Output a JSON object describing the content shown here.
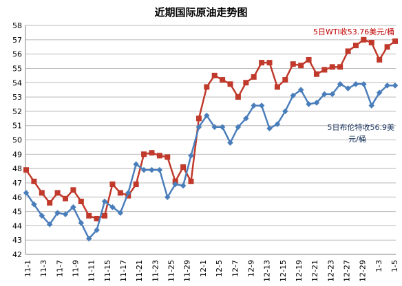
{
  "chart_data": {
    "type": "line",
    "title": "近期国际原油走势图",
    "xlabel": "",
    "ylabel": "",
    "ylim": [
      42,
      58
    ],
    "y_ticks": [
      42,
      43,
      44,
      45,
      46,
      47,
      48,
      49,
      50,
      51,
      52,
      53,
      54,
      55,
      56,
      57,
      58
    ],
    "x_tick_labels": [
      "11-1",
      "11-3",
      "11-7",
      "11-9",
      "11-11",
      "11-15",
      "11-17",
      "11-21",
      "11-23",
      "11-25",
      "11-29",
      "12-1",
      "12-5",
      "12-7",
      "12-9",
      "12-13",
      "12-15",
      "12-19",
      "12-21",
      "12-23",
      "12-27",
      "12-29",
      "1-3",
      "1-5"
    ],
    "grid": true,
    "legend": "none",
    "series": [
      {
        "color": "#c0392b",
        "marker": "square",
        "values": [
          47.9,
          47.1,
          46.3,
          45.6,
          46.3,
          45.9,
          46.5,
          45.7,
          44.7,
          44.5,
          44.7,
          46.9,
          46.3,
          46.1,
          46.9,
          49,
          49.1,
          48.9,
          48.8,
          47.1,
          48.1,
          47.1,
          51.5,
          53.7,
          54.5,
          54.2,
          53.9,
          53,
          54,
          54.4,
          55.4,
          55.4,
          53.7,
          54.2,
          55.3,
          55.2,
          55.6,
          54.6,
          54.9,
          55.1,
          55.1,
          56.2,
          56.6,
          57,
          56.8,
          55.6,
          56.5,
          56.9
        ]
      },
      {
        "color": "#4a7ebb",
        "marker": "diamond",
        "values": [
          46.3,
          45.5,
          44.7,
          44.1,
          44.9,
          44.8,
          45.3,
          44.2,
          43.1,
          43.7,
          45.7,
          45.3,
          44.9,
          46.3,
          48.3,
          47.9,
          47.9,
          47.9,
          46,
          46.9,
          46.8,
          48.9,
          50.9,
          51.7,
          50.9,
          50.9,
          49.8,
          50.9,
          51.5,
          52.4,
          52.4,
          50.8,
          51.1,
          52,
          53.1,
          53.5,
          52.5,
          52.6,
          53.2,
          53.2,
          53.9,
          53.6,
          53.9,
          53.9,
          52.4,
          53.3,
          53.8,
          53.8
        ]
      }
    ],
    "annotations": {
      "wti": "5日WTI收53.76美元/桶",
      "brent_line1": "5日布伦特收56.9美",
      "brent_line2": "元/桶"
    }
  }
}
